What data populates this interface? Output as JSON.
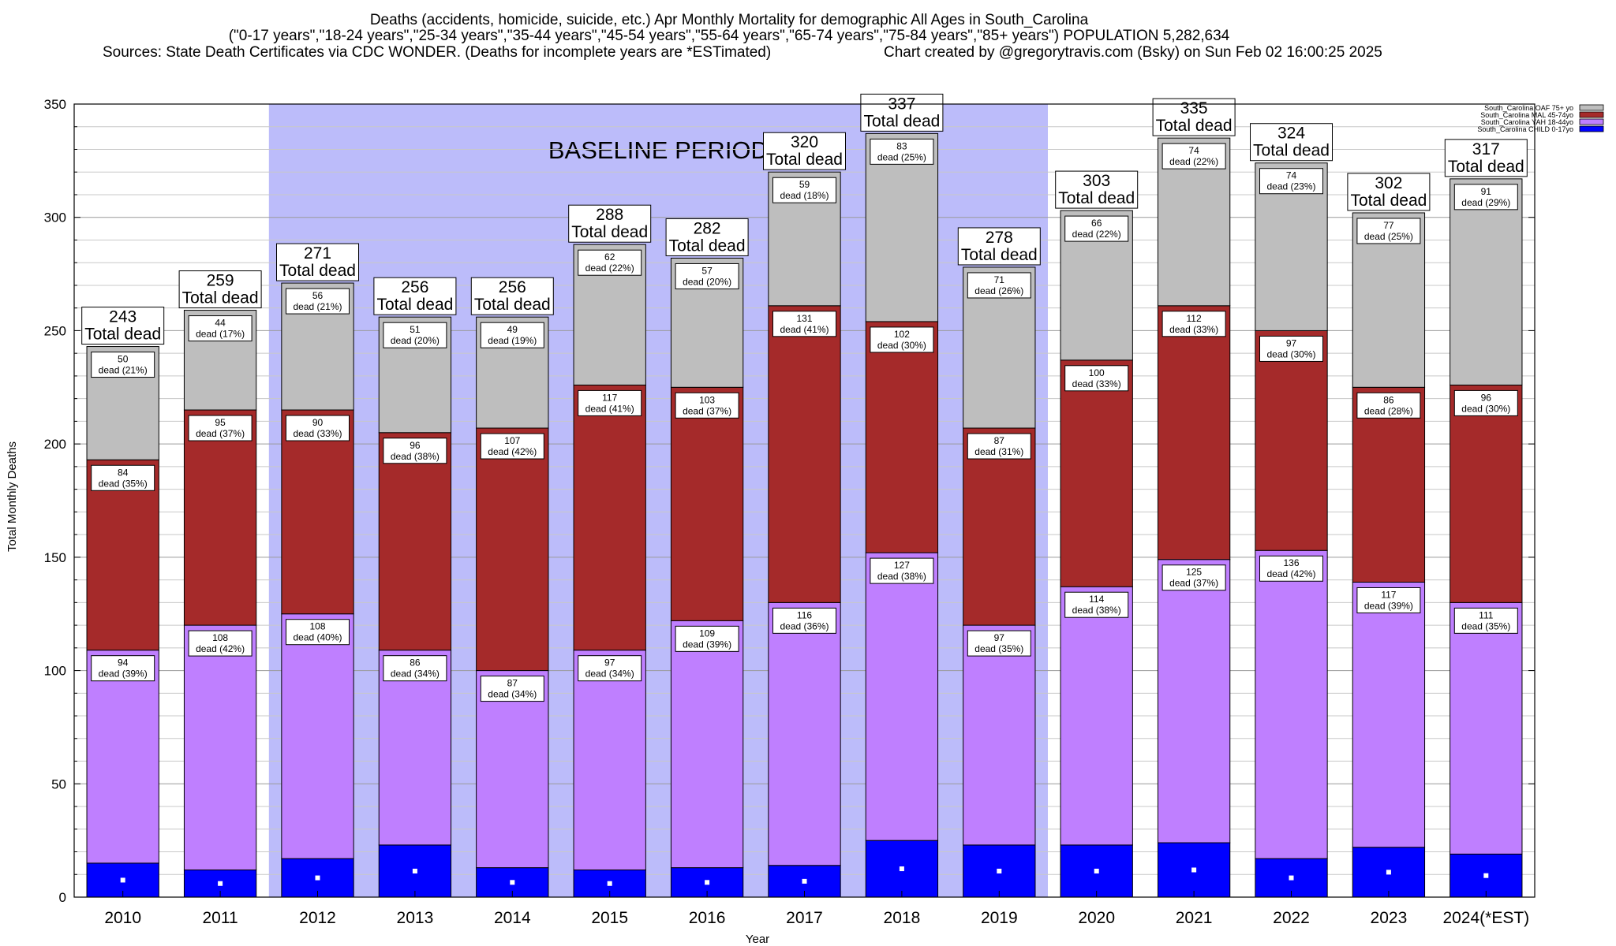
{
  "chart_data": {
    "type": "bar",
    "stacked": true,
    "title_lines": [
      "Deaths (accidents, homicide, suicide, etc.) Apr Monthly Mortality for demographic All Ages in South_Carolina",
      "(\"0-17 years\",\"18-24 years\",\"25-34 years\",\"35-44 years\",\"45-54 years\",\"55-64 years\",\"65-74 years\",\"75-84 years\",\"85+ years\") POPULATION 5,282,634",
      "Sources: State Death Certificates via CDC WONDER. (Deaths for incomplete years are *ESTimated)",
      "Chart created by @gregorytravis.com (Bsky) on Sun Feb 02 16:00:25 2025"
    ],
    "xlabel": "Year",
    "ylabel": "Total Monthly Deaths",
    "ylim": [
      0,
      350
    ],
    "yticks": [
      0,
      50,
      100,
      150,
      200,
      250,
      300,
      350
    ],
    "grid": true,
    "legend_position": "top-right",
    "categories": [
      "2010",
      "2011",
      "2012",
      "2013",
      "2014",
      "2015",
      "2016",
      "2017",
      "2018",
      "2019",
      "2020",
      "2021",
      "2022",
      "2023",
      "2024(*EST)"
    ],
    "baseline_period": {
      "label": "BASELINE PERIOD",
      "start": "2012",
      "end": "2019",
      "color": "#bcbcfa"
    },
    "total_label_suffix": "Total dead",
    "segment_label_word": "dead",
    "series": [
      {
        "name": "South_Carolina CHILD 0-17yo",
        "color": "#0000ff",
        "values": [
          15,
          12,
          17,
          23,
          13,
          12,
          13,
          14,
          25,
          23,
          23,
          24,
          17,
          22,
          19
        ]
      },
      {
        "name": "South_Carolina YAH 18-44yo",
        "color": "#bf7fff",
        "values": [
          94,
          108,
          108,
          86,
          87,
          97,
          109,
          116,
          127,
          97,
          114,
          125,
          136,
          117,
          111
        ],
        "pct": [
          "39%",
          "42%",
          "40%",
          "34%",
          "34%",
          "34%",
          "39%",
          "36%",
          "38%",
          "35%",
          "38%",
          "37%",
          "42%",
          "39%",
          "35%"
        ]
      },
      {
        "name": "South_Carolina MAL 45-74yo",
        "color": "#a52a2a",
        "values": [
          84,
          95,
          90,
          96,
          107,
          117,
          103,
          131,
          102,
          87,
          100,
          112,
          97,
          86,
          96
        ],
        "pct": [
          "35%",
          "37%",
          "33%",
          "38%",
          "42%",
          "41%",
          "37%",
          "41%",
          "30%",
          "31%",
          "33%",
          "33%",
          "30%",
          "28%",
          "30%"
        ]
      },
      {
        "name": "South_Carolina OAF 75+ yo",
        "color": "#bebebe",
        "values": [
          50,
          44,
          56,
          51,
          49,
          62,
          57,
          59,
          83,
          71,
          66,
          74,
          74,
          77,
          91
        ],
        "pct": [
          "21%",
          "17%",
          "21%",
          "20%",
          "19%",
          "22%",
          "20%",
          "18%",
          "25%",
          "26%",
          "22%",
          "22%",
          "23%",
          "25%",
          "29%"
        ]
      }
    ],
    "totals": [
      243,
      259,
      271,
      256,
      256,
      288,
      282,
      320,
      337,
      278,
      303,
      335,
      324,
      302,
      317
    ]
  }
}
